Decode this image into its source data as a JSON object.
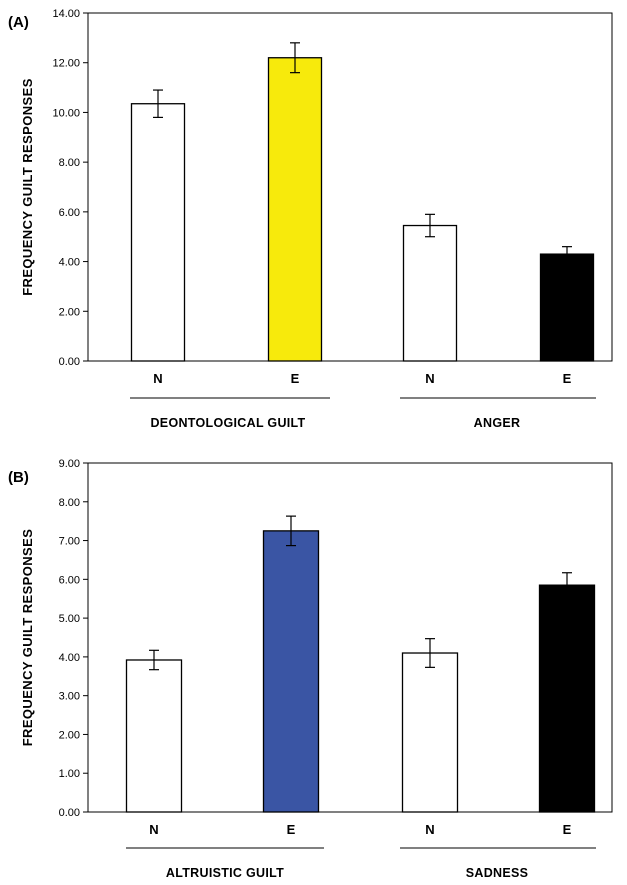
{
  "chart_data": [
    {
      "type": "bar",
      "panel_label": "(A)",
      "ylabel": "FREQUENCY GUILT RESPONSES",
      "ylim": [
        0,
        14
      ],
      "yticks": [
        "0.00",
        "2.00",
        "4.00",
        "6.00",
        "8.00",
        "10.00",
        "12.00",
        "14.00"
      ],
      "groups": [
        {
          "label": "DEONTOLOGICAL GUILT",
          "bars": [
            {
              "label": "N",
              "value": 10.35,
              "error": 0.55,
              "color": "#ffffff"
            },
            {
              "label": "E",
              "value": 12.2,
              "error": 0.6,
              "color": "#f7ea0c"
            }
          ]
        },
        {
          "label": "ANGER",
          "bars": [
            {
              "label": "N",
              "value": 5.45,
              "error": 0.45,
              "color": "#ffffff"
            },
            {
              "label": "E",
              "value": 4.3,
              "error": 0.3,
              "color": "#000000"
            }
          ]
        }
      ]
    },
    {
      "type": "bar",
      "panel_label": "(B)",
      "ylabel": "FREQUENCY GUILT RESPONSES",
      "ylim": [
        0,
        9
      ],
      "yticks": [
        "0.00",
        "1.00",
        "2.00",
        "3.00",
        "4.00",
        "5.00",
        "6.00",
        "7.00",
        "8.00",
        "9.00"
      ],
      "groups": [
        {
          "label": "ALTRUISTIC GUILT",
          "bars": [
            {
              "label": "N",
              "value": 3.92,
              "error": 0.25,
              "color": "#ffffff"
            },
            {
              "label": "E",
              "value": 7.25,
              "error": 0.38,
              "color": "#3a55a4"
            }
          ]
        },
        {
          "label": "SADNESS",
          "bars": [
            {
              "label": "N",
              "value": 4.1,
              "error": 0.37,
              "color": "#ffffff"
            },
            {
              "label": "E",
              "value": 5.85,
              "error": 0.32,
              "color": "#000000"
            }
          ]
        }
      ]
    }
  ]
}
